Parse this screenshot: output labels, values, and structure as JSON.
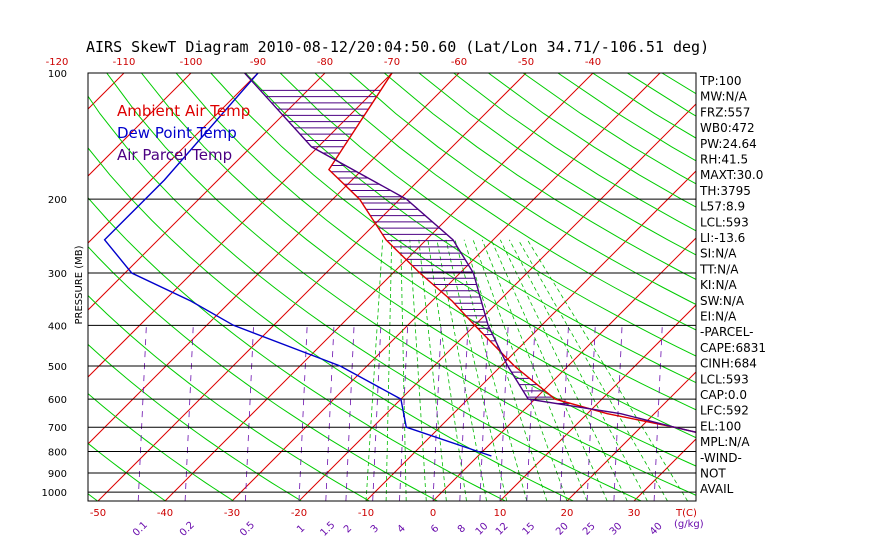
{
  "chart_data": {
    "type": "line",
    "title": "AIRS SkewT Diagram 2010-08-12/20:04:50.60 (Lat/Lon 34.71/-106.51 deg)",
    "ylabel": "PRESSURE (MB)",
    "xlabel_unit": "T(C)",
    "mixing_unit": "(g/kg)",
    "y_scale": "log",
    "ylim": [
      1050,
      100
    ],
    "pressure_ticks": [
      100,
      200,
      300,
      400,
      500,
      600,
      700,
      800,
      900,
      1000
    ],
    "bottom_temp_ticks": [
      -50,
      -40,
      -30,
      -20,
      -10,
      0,
      10,
      20,
      30
    ],
    "top_temp_ticks": [
      -120,
      -110,
      -100,
      -90,
      -80,
      -70,
      -60,
      -50,
      -40
    ],
    "mixing_ratio_ticks": [
      "0.1",
      "0.2",
      "0.5",
      "1",
      "1.5",
      "2",
      "3",
      "4",
      "6",
      "8",
      "10",
      "12",
      "15",
      "20",
      "25",
      "30",
      "40"
    ],
    "series": [
      {
        "name": "Ambient Air Temp",
        "color": "#dd0000",
        "points": [
          [
            100,
            -70
          ],
          [
            170,
            -65
          ],
          [
            200,
            -56
          ],
          [
            250,
            -46
          ],
          [
            300,
            -36
          ],
          [
            350,
            -27
          ],
          [
            400,
            -20
          ],
          [
            500,
            -8
          ],
          [
            600,
            3
          ],
          [
            650,
            13
          ],
          [
            700,
            25
          ],
          [
            750,
            35
          ]
        ]
      },
      {
        "name": "Dew Point Temp",
        "color": "#0000cc",
        "points": [
          [
            100,
            -90
          ],
          [
            180,
            -88
          ],
          [
            200,
            -88
          ],
          [
            250,
            -88
          ],
          [
            300,
            -79
          ],
          [
            350,
            -66
          ],
          [
            400,
            -56
          ],
          [
            500,
            -34
          ],
          [
            600,
            -20
          ],
          [
            700,
            -15
          ],
          [
            820,
            2
          ]
        ]
      },
      {
        "name": "Air Parcel Temp",
        "color": "#4b0082",
        "points": [
          [
            100,
            -92
          ],
          [
            150,
            -71
          ],
          [
            200,
            -49
          ],
          [
            250,
            -36
          ],
          [
            300,
            -28
          ],
          [
            400,
            -18
          ],
          [
            500,
            -9
          ],
          [
            600,
            -1
          ],
          [
            650,
            15
          ],
          [
            700,
            25
          ],
          [
            750,
            35
          ]
        ]
      }
    ],
    "grid": true
  },
  "stats": [
    "TP:100",
    "MW:N/A",
    "FRZ:557",
    "WB0:472",
    "PW:24.64",
    "RH:41.5",
    "MAXT:30.0",
    "TH:3795",
    "L57:8.9",
    "LCL:593",
    "LI:-13.6",
    "SI:N/A",
    "TT:N/A",
    "KI:N/A",
    "SW:N/A",
    "EI:N/A",
    "-PARCEL-",
    "CAPE:6831",
    "CINH:684",
    "LCL:593",
    "CAP:0.0",
    "LFC:592",
    "EL:100",
    "MPL:N/A",
    "-WIND-",
    "NOT",
    "AVAIL"
  ],
  "colors": {
    "isotherm": "#dd0000",
    "dry_adiabat": "#00cc00",
    "moist_adiabat": "#00bb00",
    "mixing_ratio": "#6a0dad",
    "hatch": "#4b0082",
    "frame": "#000000"
  }
}
